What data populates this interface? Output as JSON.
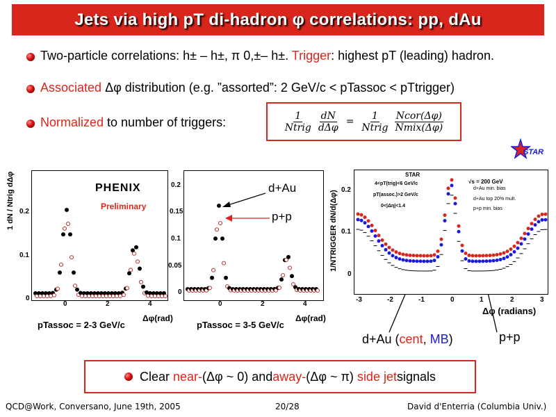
{
  "title": "Jets via high pT di-hadron φ correlations: pp, dAu",
  "bullets": [
    {
      "text": "Two-particle correlations: h± – h±, π 0,±– h±.",
      "trigger_word": "Trigger",
      "trigger_rest": ": highest pT (leading) hadron."
    },
    {
      "lead": "Associated",
      "rest": " Δφ distribution (e.g. ”assorted”: 2 GeV/c < pTassoc < pTtrigger)"
    },
    {
      "lead": "Normalized",
      "rest": " to number of triggers:"
    }
  ],
  "formula": {
    "lhs_num": "1",
    "lhs_den": "Ntrig",
    "dN": "dN",
    "dphi": "dΔφ",
    "rhs_num": "1",
    "rhs_den": "Ntrig",
    "ncor": "Ncor(Δφ)",
    "nmix": "Nmix(Δφ)"
  },
  "phenix": {
    "logo": "PHENIX",
    "preliminary": "Preliminary",
    "ylabel": "1   dN / Ntrig dΔφ",
    "xlabel": "Δφ(rad)",
    "yticks_left": [
      "0.2",
      "0.1",
      "0"
    ],
    "yticks_right": [
      "0.2",
      "0.15",
      "0.1",
      "0.05",
      "0"
    ],
    "xticks": [
      "0",
      "2",
      "4"
    ],
    "left_caption": "pTassoc = 2-3 GeV/c",
    "right_caption": "pTassoc = 3-5 GeV/c",
    "dau_label": "d+Au",
    "pp_label": "p+p"
  },
  "star": {
    "logo": "STAR",
    "header": "STAR",
    "sqrt": "√s = 200 GeV",
    "cuts": [
      "4<pT(trig)<6 GeV/c",
      "pT(assoc.)>2 GeV/c",
      "0<|Δη|<1.4"
    ],
    "legend": [
      "d+Au min. bias",
      "d+Au top 20% mult.",
      "p+p min. bias"
    ],
    "ylabel": "1/NTRIGGER dN/d(Δφ)",
    "xlabel": "Δφ (radians)",
    "xticks": [
      "-3",
      "-2",
      "-1",
      "0",
      "1",
      "2",
      "3"
    ],
    "yticks": [
      "0.2",
      "0.1",
      "0"
    ],
    "dau_caption_a": "d+Au (",
    "cent": "cent",
    "comma": ", ",
    "mb": "MB",
    "dau_caption_b": ")",
    "pp_caption": "p+p"
  },
  "conclusion": {
    "a": "Clear ",
    "near": "near-",
    "b": " (Δφ ~ 0) and ",
    "away": "away-",
    "c": " (Δφ ~ π) ",
    "side": "side jet",
    "d": " signals"
  },
  "footer": {
    "left": "QCD@Work, Conversano, June 19th, 2005",
    "page": "20/28",
    "right": "David d'Enterria (Columbia Univ.)"
  },
  "colors": {
    "accent": "#d9261c",
    "blue": "#1a1adf"
  }
}
